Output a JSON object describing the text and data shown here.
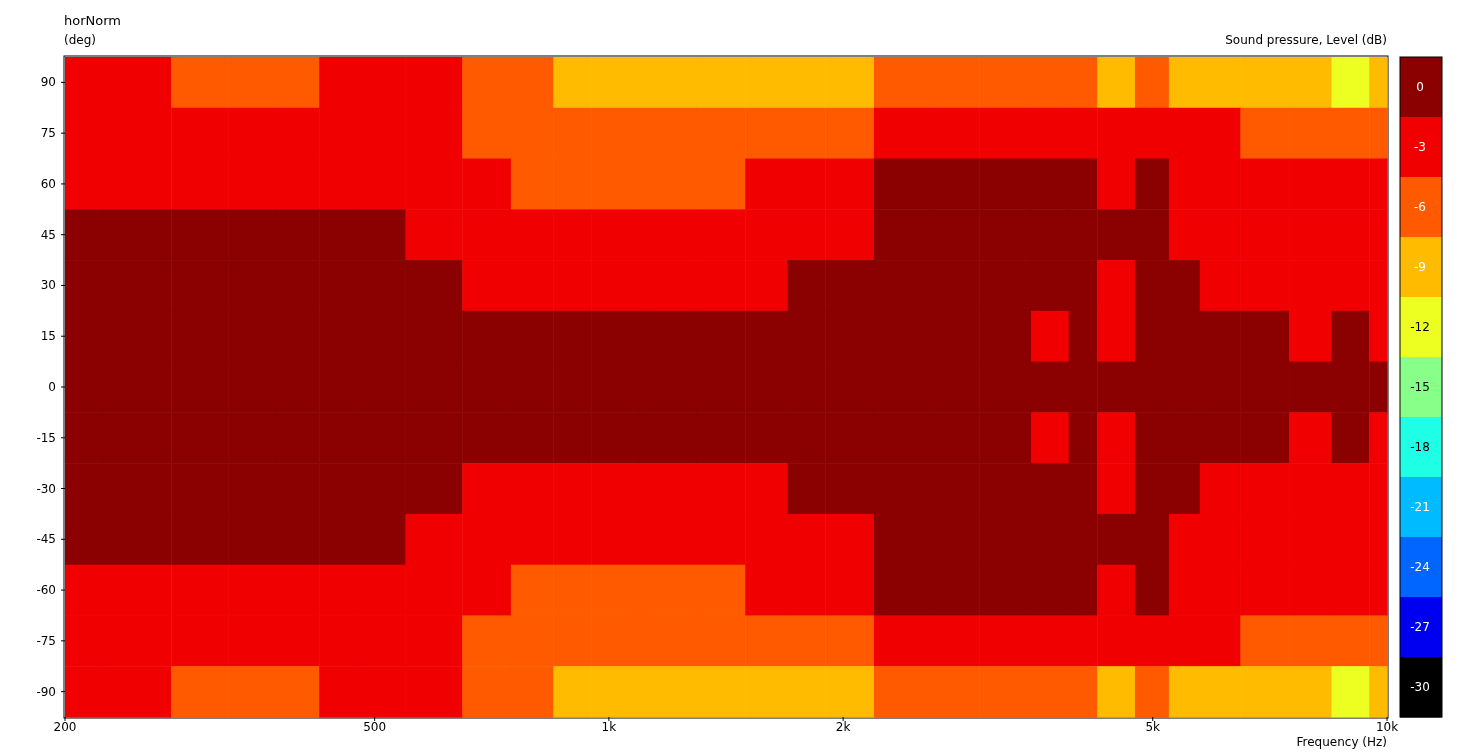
{
  "chart_data": {
    "type": "heatmap",
    "title": "horNorm",
    "ylabel": "(deg)",
    "xlabel": "Frequency  (Hz)",
    "clabel": "Sound pressure, Level  (dB)",
    "x": [
      200,
      250,
      300,
      350,
      400,
      450,
      500,
      600,
      700,
      800,
      900,
      1000,
      1200,
      1400,
      1600,
      1800,
      2000,
      2400,
      2800,
      3200,
      3800,
      4000,
      4500,
      5000,
      5500,
      6000,
      7000,
      8000,
      9000,
      10000
    ],
    "y_categories": [
      "90",
      "75",
      "60",
      "45",
      "30",
      "15",
      "0",
      "-15",
      "-30",
      "-45",
      "-60",
      "-75",
      "-90"
    ],
    "cells": [
      [
        -3,
        -3,
        -6,
        -6,
        -6,
        -3,
        -3,
        -3,
        -6,
        -6,
        -9,
        -9,
        -9,
        -9,
        -9,
        -9,
        -9,
        -6,
        -6,
        -6,
        -6,
        -6,
        -9,
        -6,
        -9,
        -9,
        -9,
        -9,
        -12,
        -9
      ],
      [
        -3,
        -3,
        -3,
        -3,
        -3,
        -3,
        -3,
        -3,
        -6,
        -6,
        -6,
        -6,
        -6,
        -6,
        -6,
        -6,
        -6,
        -3,
        -3,
        -3,
        -3,
        -3,
        -3,
        -3,
        -3,
        -3,
        -6,
        -6,
        -6,
        -6
      ],
      [
        -3,
        -3,
        -3,
        -3,
        -3,
        -3,
        -3,
        -3,
        -3,
        -6,
        -6,
        -6,
        -6,
        -6,
        -3,
        -3,
        -3,
        0,
        0,
        0,
        0,
        0,
        -3,
        0,
        -3,
        -3,
        -3,
        -3,
        -3,
        -3
      ],
      [
        0,
        0,
        0,
        0,
        0,
        0,
        0,
        -3,
        -3,
        -3,
        -3,
        -3,
        -3,
        -3,
        -3,
        -3,
        -3,
        0,
        0,
        0,
        0,
        0,
        0,
        0,
        -3,
        -3,
        -3,
        -3,
        -3,
        -3
      ],
      [
        0,
        0,
        0,
        0,
        0,
        0,
        0,
        0,
        -3,
        -3,
        -3,
        -3,
        -3,
        -3,
        -3,
        0,
        0,
        0,
        0,
        0,
        0,
        0,
        -3,
        0,
        0,
        -3,
        -3,
        -3,
        -3,
        -3
      ],
      [
        0,
        0,
        0,
        0,
        0,
        0,
        0,
        0,
        0,
        0,
        0,
        0,
        0,
        0,
        0,
        0,
        0,
        0,
        0,
        0,
        -3,
        0,
        -3,
        0,
        0,
        0,
        0,
        -3,
        0,
        -3
      ],
      [
        0,
        0,
        0,
        0,
        0,
        0,
        0,
        0,
        0,
        0,
        0,
        0,
        0,
        0,
        0,
        0,
        0,
        0,
        0,
        0,
        0,
        0,
        0,
        0,
        0,
        0,
        0,
        0,
        0,
        0
      ],
      [
        0,
        0,
        0,
        0,
        0,
        0,
        0,
        0,
        0,
        0,
        0,
        0,
        0,
        0,
        0,
        0,
        0,
        0,
        0,
        0,
        -3,
        0,
        -3,
        0,
        0,
        0,
        0,
        -3,
        0,
        -3
      ],
      [
        0,
        0,
        0,
        0,
        0,
        0,
        0,
        0,
        -3,
        -3,
        -3,
        -3,
        -3,
        -3,
        -3,
        0,
        0,
        0,
        0,
        0,
        0,
        0,
        -3,
        0,
        0,
        -3,
        -3,
        -3,
        -3,
        -3
      ],
      [
        0,
        0,
        0,
        0,
        0,
        0,
        0,
        -3,
        -3,
        -3,
        -3,
        -3,
        -3,
        -3,
        -3,
        -3,
        -3,
        0,
        0,
        0,
        0,
        0,
        0,
        0,
        -3,
        -3,
        -3,
        -3,
        -3,
        -3
      ],
      [
        -3,
        -3,
        -3,
        -3,
        -3,
        -3,
        -3,
        -3,
        -3,
        -6,
        -6,
        -6,
        -6,
        -6,
        -3,
        -3,
        -3,
        0,
        0,
        0,
        0,
        0,
        -3,
        0,
        -3,
        -3,
        -3,
        -3,
        -3,
        -3
      ],
      [
        -3,
        -3,
        -3,
        -3,
        -3,
        -3,
        -3,
        -3,
        -6,
        -6,
        -6,
        -6,
        -6,
        -6,
        -6,
        -6,
        -6,
        -3,
        -3,
        -3,
        -3,
        -3,
        -3,
        -3,
        -3,
        -3,
        -6,
        -6,
        -6,
        -6
      ],
      [
        -3,
        -3,
        -6,
        -6,
        -6,
        -3,
        -3,
        -3,
        -6,
        -6,
        -9,
        -9,
        -9,
        -9,
        -9,
        -9,
        -9,
        -6,
        -6,
        -6,
        -6,
        -6,
        -9,
        -6,
        -9,
        -9,
        -9,
        -9,
        -12,
        -9
      ]
    ],
    "colors": [
      "#8b0000",
      "#f00000",
      "#ff5a00",
      "#ffbb00",
      "#ecff20",
      "#88ff88",
      "#1effe6",
      "#00bbff",
      "#0066ff",
      "#0000f0",
      "#000000"
    ],
    "clim": [
      -31.5,
      1.5
    ],
    "cticks": [
      0,
      -3,
      -6,
      -9,
      -12,
      -15,
      -18,
      -21,
      -24,
      -27,
      -30
    ],
    "log": "x",
    "xlim": [
      200,
      10000
    ],
    "xticks": [
      200,
      500,
      {
        "value": 1000,
        "label": "1k"
      },
      {
        "value": 2000,
        "label": "2k"
      },
      {
        "value": 5000,
        "label": "5k"
      },
      {
        "value": 10000,
        "label": "10k"
      }
    ]
  }
}
